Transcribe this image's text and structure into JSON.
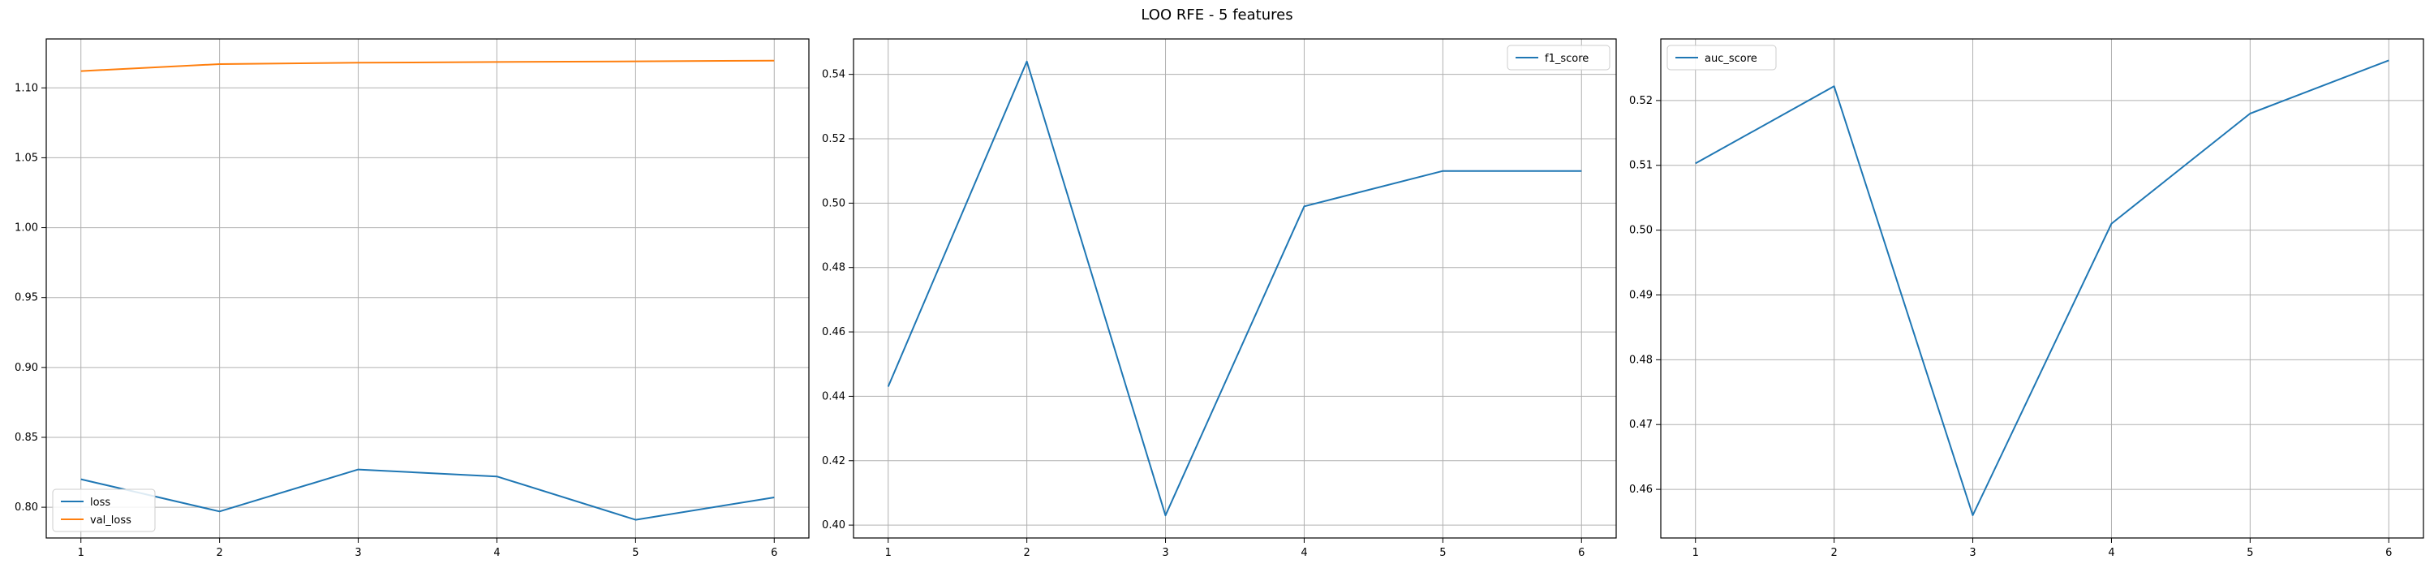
{
  "figure": {
    "title": "LOO RFE - 5 features"
  },
  "colors": {
    "blue": "#1f77b4",
    "orange": "#ff7f0e",
    "grid": "#b0b0b0",
    "axis": "#000000"
  },
  "chart_data": [
    {
      "type": "line",
      "title": "",
      "xlabel": "",
      "ylabel": "",
      "x": [
        1,
        2,
        3,
        4,
        5,
        6
      ],
      "xlim": [
        0.75,
        6.25
      ],
      "ylim": [
        0.778,
        1.135
      ],
      "xticks": [
        1,
        2,
        3,
        4,
        5,
        6
      ],
      "yticks": [
        0.8,
        0.85,
        0.9,
        0.95,
        1.0,
        1.05,
        1.1
      ],
      "ytick_labels": [
        "0.80",
        "0.85",
        "0.90",
        "0.95",
        "1.00",
        "1.05",
        "1.10"
      ],
      "grid": true,
      "legend": "lower-left",
      "series": [
        {
          "name": "loss",
          "color": "#1f77b4",
          "values": [
            0.82,
            0.797,
            0.827,
            0.822,
            0.791,
            0.807
          ]
        },
        {
          "name": "val_loss",
          "color": "#ff7f0e",
          "values": [
            1.112,
            1.117,
            1.118,
            1.1185,
            1.119,
            1.1195
          ]
        }
      ]
    },
    {
      "type": "line",
      "title": "",
      "xlabel": "",
      "ylabel": "",
      "x": [
        1,
        2,
        3,
        4,
        5,
        6
      ],
      "xlim": [
        0.75,
        6.25
      ],
      "ylim": [
        0.396,
        0.551
      ],
      "xticks": [
        1,
        2,
        3,
        4,
        5,
        6
      ],
      "yticks": [
        0.4,
        0.42,
        0.44,
        0.46,
        0.48,
        0.5,
        0.52,
        0.54
      ],
      "ytick_labels": [
        "0.40",
        "0.42",
        "0.44",
        "0.46",
        "0.48",
        "0.50",
        "0.52",
        "0.54"
      ],
      "grid": true,
      "legend": "upper-right",
      "series": [
        {
          "name": "f1_score",
          "color": "#1f77b4",
          "values": [
            0.443,
            0.544,
            0.403,
            0.499,
            0.51,
            0.51
          ]
        }
      ]
    },
    {
      "type": "line",
      "title": "",
      "xlabel": "",
      "ylabel": "",
      "x": [
        1,
        2,
        3,
        4,
        5,
        6
      ],
      "xlim": [
        0.75,
        6.25
      ],
      "ylim": [
        0.4525,
        0.5295
      ],
      "xticks": [
        1,
        2,
        3,
        4,
        5,
        6
      ],
      "yticks": [
        0.46,
        0.47,
        0.48,
        0.49,
        0.5,
        0.51,
        0.52
      ],
      "ytick_labels": [
        "0.46",
        "0.47",
        "0.48",
        "0.49",
        "0.50",
        "0.51",
        "0.52"
      ],
      "grid": true,
      "legend": "upper-left",
      "series": [
        {
          "name": "auc_score",
          "color": "#1f77b4",
          "values": [
            0.5103,
            0.5222,
            0.456,
            0.501,
            0.518,
            0.5262
          ]
        }
      ]
    }
  ]
}
